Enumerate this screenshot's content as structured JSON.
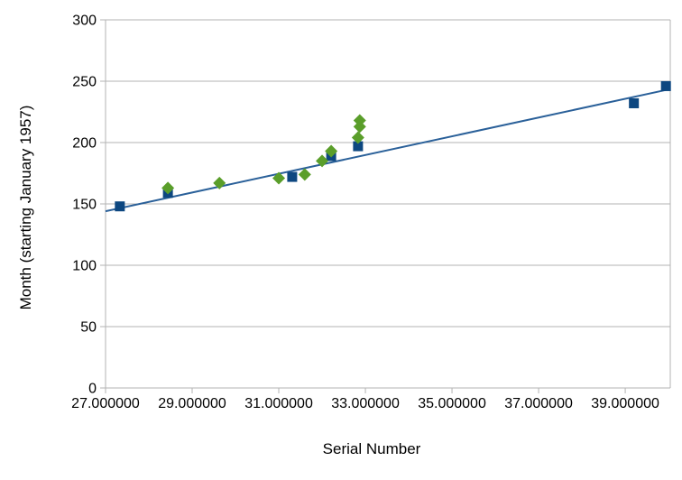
{
  "chart_data": {
    "type": "scatter",
    "title": "",
    "xlabel": "Serial Number",
    "ylabel": "Month (starting January 1957)",
    "xlim": [
      27.0,
      40.04
    ],
    "ylim": [
      0,
      300
    ],
    "grid": "horizontal",
    "legend": "none",
    "x_ticks": [
      27,
      29,
      31,
      33,
      35,
      37,
      39
    ],
    "x_tick_labels": [
      "27.000000",
      "29.000000",
      "31.000000",
      "33.000000",
      "35.000000",
      "37.000000",
      "39.000000"
    ],
    "y_ticks": [
      0,
      50,
      100,
      150,
      200,
      250,
      300
    ],
    "y_tick_labels": [
      "0",
      "50",
      "100",
      "150",
      "200",
      "250",
      "300"
    ],
    "series": [
      {
        "marker": "square",
        "color": "#0d4780",
        "size": 11,
        "points": [
          [
            27.33,
            148
          ],
          [
            28.44,
            159
          ],
          [
            31.31,
            172
          ],
          [
            32.21,
            189
          ],
          [
            32.83,
            197
          ],
          [
            39.2,
            232
          ],
          [
            39.94,
            246
          ]
        ]
      },
      {
        "marker": "diamond",
        "color": "#5a9e2a",
        "size": 14,
        "points": [
          [
            28.44,
            163
          ],
          [
            29.63,
            167
          ],
          [
            31.0,
            171
          ],
          [
            31.6,
            174
          ],
          [
            32.0,
            185
          ],
          [
            32.21,
            193
          ],
          [
            32.83,
            204
          ],
          [
            32.87,
            213
          ],
          [
            32.87,
            218
          ]
        ]
      }
    ],
    "trendline": {
      "color": "#2a6099",
      "width": 2,
      "x1": 27.0,
      "y1": 144,
      "x2": 40.04,
      "y2": 243.6
    },
    "colors": {
      "grid": "#b3b3b3",
      "axis": "#b3b3b3",
      "text": "#000000",
      "background": "#ffffff"
    }
  }
}
